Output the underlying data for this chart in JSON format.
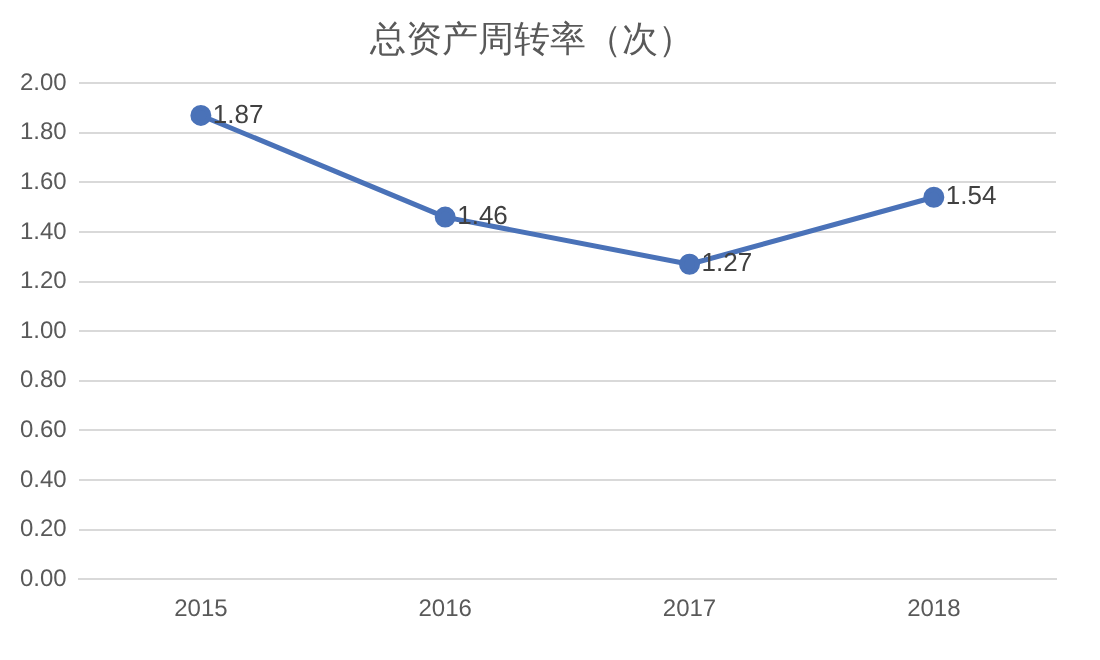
{
  "chart_data": {
    "type": "line",
    "title": "总资产周转率（次）",
    "categories": [
      "2015",
      "2016",
      "2017",
      "2018"
    ],
    "series": [
      {
        "color": "#4a72b8",
        "values": [
          1.87,
          1.46,
          1.27,
          1.54
        ]
      }
    ],
    "ylim": [
      0,
      2
    ],
    "yticks": [
      {
        "value": 0,
        "label": "0.00"
      },
      {
        "value": 0.2,
        "label": "0.20"
      },
      {
        "value": 0.4,
        "label": "0.40"
      },
      {
        "value": 0.6,
        "label": "0.60"
      },
      {
        "value": 0.8,
        "label": "0.80"
      },
      {
        "value": 1,
        "label": "1.00"
      },
      {
        "value": 1.2,
        "label": "1.20"
      },
      {
        "value": 1.4,
        "label": "1.40"
      },
      {
        "value": 1.6,
        "label": "1.60"
      },
      {
        "value": 1.8,
        "label": "1.80"
      },
      {
        "value": 2,
        "label": "2.00"
      }
    ],
    "grid": "y",
    "marker": "circle",
    "line_style": "solid",
    "data_labels": true,
    "legend": false
  }
}
